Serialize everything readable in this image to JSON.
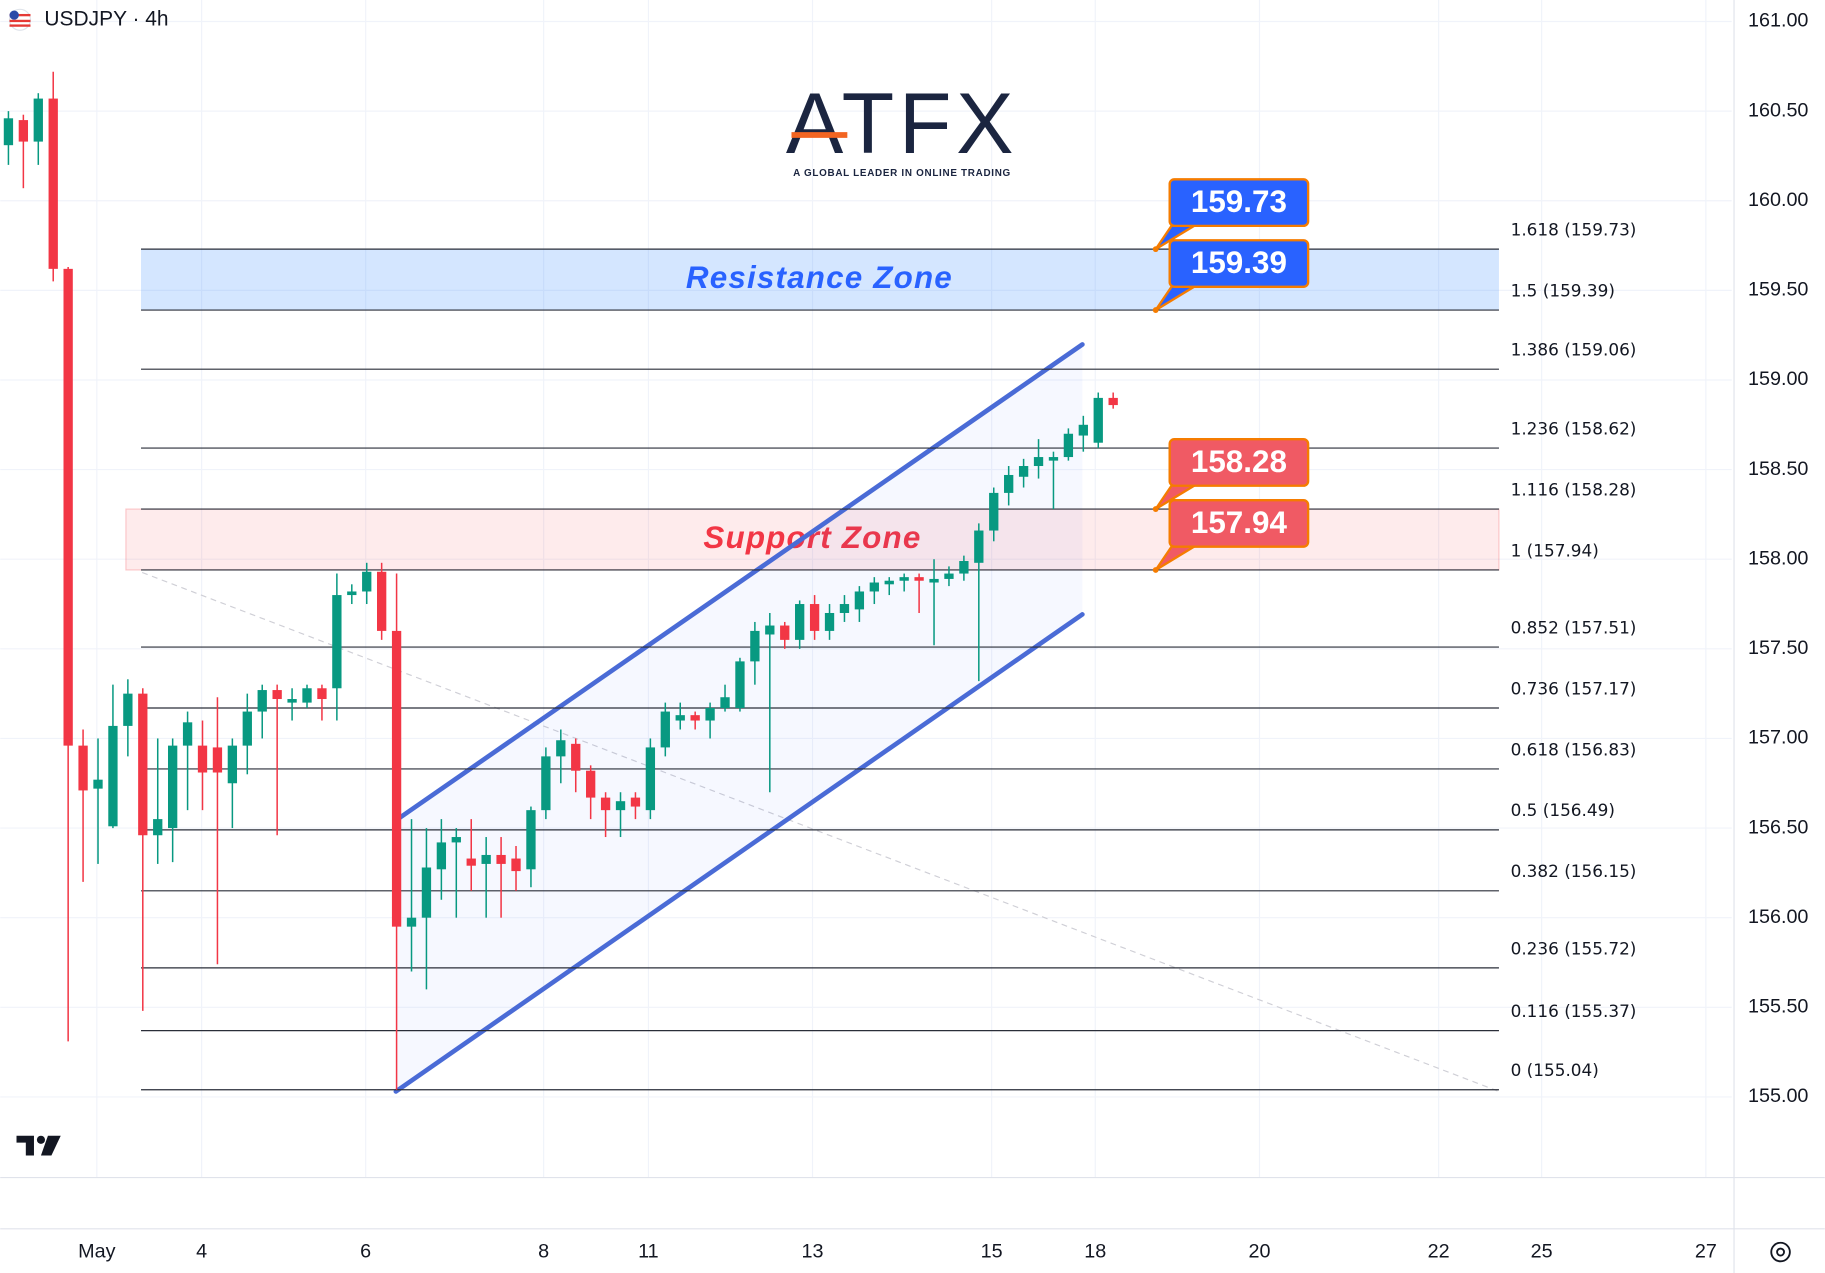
{
  "chart_data": {
    "type": "candlestick",
    "title": "USDJPY · 4h",
    "logo": {
      "name": "ATFX",
      "tagline": "A GLOBAL LEADER IN ONLINE TRADING"
    },
    "up_color": "#089981",
    "down_color": "#f23645",
    "open": [
      160.31,
      160.45,
      160.33,
      160.57,
      159.62,
      156.96,
      156.72,
      156.51,
      157.07,
      157.25,
      156.46,
      156.5,
      156.96,
      156.96,
      156.95,
      156.75,
      156.96,
      157.15,
      157.27,
      157.2,
      157.2,
      157.28,
      157.28,
      157.8,
      157.82,
      157.93,
      157.6,
      155.95,
      156.0,
      156.27,
      156.42,
      156.33,
      156.3,
      156.35,
      156.33,
      156.27,
      156.6,
      156.9,
      156.97,
      156.82,
      156.67,
      156.6,
      156.67,
      156.6,
      156.95,
      157.1,
      157.13,
      157.1,
      157.17,
      157.17,
      157.43,
      157.58,
      157.63,
      157.55,
      157.75,
      157.6,
      157.7,
      157.72,
      157.82,
      157.86,
      157.88,
      157.9,
      157.87,
      157.89,
      157.92,
      157.98,
      158.16,
      158.37,
      158.46,
      158.52,
      158.55,
      158.57,
      158.69,
      158.65,
      158.9
    ],
    "high": [
      160.5,
      160.48,
      160.6,
      160.72,
      159.63,
      157.05,
      157.0,
      157.3,
      157.33,
      157.28,
      157.0,
      157.0,
      157.15,
      157.1,
      157.23,
      157.0,
      157.25,
      157.3,
      157.3,
      157.28,
      157.3,
      157.3,
      157.92,
      157.86,
      157.98,
      157.98,
      157.92,
      156.55,
      156.5,
      156.55,
      156.5,
      156.55,
      156.45,
      156.45,
      156.4,
      156.62,
      156.95,
      157.05,
      157.0,
      156.85,
      156.7,
      156.7,
      156.7,
      157.0,
      157.2,
      157.2,
      157.15,
      157.2,
      157.3,
      157.45,
      157.65,
      157.7,
      157.65,
      157.77,
      157.8,
      157.75,
      157.8,
      157.85,
      157.9,
      157.9,
      157.92,
      157.92,
      158.0,
      157.96,
      158.02,
      158.2,
      158.4,
      158.52,
      158.56,
      158.67,
      158.6,
      158.73,
      158.8,
      158.93,
      158.93
    ],
    "low": [
      160.2,
      160.07,
      160.2,
      159.55,
      155.31,
      156.2,
      156.3,
      156.5,
      156.9,
      155.48,
      156.3,
      156.31,
      156.6,
      156.6,
      155.74,
      156.5,
      156.8,
      157.0,
      156.46,
      157.1,
      157.17,
      157.1,
      157.1,
      157.75,
      157.75,
      157.55,
      155.04,
      155.7,
      155.6,
      156.1,
      156.0,
      156.15,
      156.0,
      156.0,
      156.15,
      156.17,
      156.55,
      156.75,
      156.7,
      156.55,
      156.45,
      156.45,
      156.55,
      156.55,
      156.9,
      157.05,
      157.05,
      157.0,
      157.15,
      157.15,
      157.3,
      156.7,
      157.5,
      157.5,
      157.55,
      157.55,
      157.65,
      157.65,
      157.75,
      157.8,
      157.82,
      157.7,
      157.52,
      157.85,
      157.88,
      157.32,
      158.1,
      158.3,
      158.4,
      158.45,
      158.28,
      158.55,
      158.6,
      158.62,
      158.84
    ],
    "close": [
      160.46,
      160.33,
      160.57,
      159.62,
      156.96,
      156.71,
      156.77,
      157.07,
      157.25,
      156.46,
      156.55,
      156.96,
      157.09,
      156.81,
      156.81,
      156.96,
      157.15,
      157.27,
      157.22,
      157.22,
      157.28,
      157.22,
      157.8,
      157.82,
      157.93,
      157.6,
      155.95,
      156.0,
      156.28,
      156.42,
      156.45,
      156.29,
      156.35,
      156.3,
      156.26,
      156.6,
      156.9,
      156.99,
      156.82,
      156.67,
      156.6,
      156.65,
      156.62,
      156.95,
      157.15,
      157.13,
      157.1,
      157.17,
      157.23,
      157.43,
      157.6,
      157.63,
      157.55,
      157.75,
      157.6,
      157.7,
      157.75,
      157.82,
      157.87,
      157.88,
      157.9,
      157.88,
      157.89,
      157.92,
      157.99,
      158.16,
      158.37,
      158.47,
      158.52,
      158.57,
      158.57,
      158.7,
      158.75,
      158.9,
      158.86
    ],
    "xlim": [
      -0.55,
      115.43
    ],
    "xticks": [
      {
        "value": 5.92,
        "label": "May"
      },
      {
        "value": 12.94,
        "label": "4"
      },
      {
        "value": 23.93,
        "label": "6"
      },
      {
        "value": 35.85,
        "label": "8"
      },
      {
        "value": 42.87,
        "label": "11"
      },
      {
        "value": 53.86,
        "label": "13"
      },
      {
        "value": 65.86,
        "label": "15"
      },
      {
        "value": 72.8,
        "label": "18"
      },
      {
        "value": 83.8,
        "label": "20"
      },
      {
        "value": 95.8,
        "label": "22"
      },
      {
        "value": 102.7,
        "label": "25"
      },
      {
        "value": 113.7,
        "label": "27"
      }
    ],
    "ylim": [
      154.55,
      161.12
    ],
    "yticks": [
      {
        "value": 155,
        "label": "155.00"
      },
      {
        "value": 155.5,
        "label": "155.50"
      },
      {
        "value": 156,
        "label": "156.00"
      },
      {
        "value": 156.5,
        "label": "156.50"
      },
      {
        "value": 157,
        "label": "157.00"
      },
      {
        "value": 157.5,
        "label": "157.50"
      },
      {
        "value": 158,
        "label": "158.00"
      },
      {
        "value": 158.5,
        "label": "158.50"
      },
      {
        "value": 159,
        "label": "159.00"
      },
      {
        "value": 159.5,
        "label": "159.50"
      },
      {
        "value": 160,
        "label": "160.00"
      },
      {
        "value": 160.5,
        "label": "160.50"
      },
      {
        "value": 161,
        "label": "161.00"
      }
    ],
    "grid": true,
    "fib_levels": [
      {
        "value": 159.73,
        "label": "1.618 (159.73)"
      },
      {
        "value": 159.39,
        "label": "1.5 (159.39)"
      },
      {
        "value": 159.06,
        "label": "1.386 (159.06)"
      },
      {
        "value": 158.62,
        "label": "1.236 (158.62)"
      },
      {
        "value": 158.28,
        "label": "1.116 (158.28)"
      },
      {
        "value": 157.94,
        "label": "1 (157.94)"
      },
      {
        "value": 157.51,
        "label": "0.852 (157.51)"
      },
      {
        "value": 157.17,
        "label": "0.736 (157.17)"
      },
      {
        "value": 156.83,
        "label": "0.618 (156.83)"
      },
      {
        "value": 156.49,
        "label": "0.5 (156.49)"
      },
      {
        "value": 156.15,
        "label": "0.382 (156.15)"
      },
      {
        "value": 155.72,
        "label": "0.236 (155.72)"
      },
      {
        "value": 155.37,
        "label": "0.116 (155.37)"
      },
      {
        "value": 155.04,
        "label": "0 (155.04)"
      }
    ],
    "zones": [
      {
        "label": "Resistance Zone",
        "range": [
          159.39,
          159.73
        ],
        "color": "#2962ff"
      },
      {
        "label": "Support Zone",
        "range": [
          157.94,
          158.28
        ],
        "color": "#f23645"
      }
    ],
    "callouts": [
      {
        "value": 159.73,
        "color": "#2962ff"
      },
      {
        "value": 159.39,
        "color": "#2962ff"
      },
      {
        "value": 158.28,
        "color": "#f05a64"
      },
      {
        "value": 157.94,
        "color": "#f05a64"
      }
    ]
  }
}
